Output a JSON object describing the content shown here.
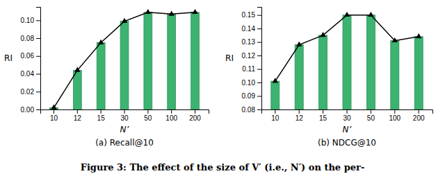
{
  "title": "Figure 3: The effect of the size of V′ (i.e., N′) on the per-",
  "chart_data": [
    {
      "type": "bar",
      "title": "(a)  Recall@10",
      "categories": [
        "10",
        "12",
        "15",
        "30",
        "50",
        "100",
        "200"
      ],
      "series": [
        {
          "type": "bar",
          "color": "#3cb371",
          "values": [
            0.002,
            0.044,
            0.075,
            0.099,
            0.109,
            0.107,
            0.109
          ]
        },
        {
          "type": "line",
          "color": "#000000",
          "marker": "triangle",
          "values": [
            0.002,
            0.044,
            0.075,
            0.099,
            0.109,
            0.107,
            0.109
          ]
        }
      ],
      "x_label": "N’",
      "y_label": "RI",
      "ylim": [
        0.0,
        0.115
      ],
      "yticks": [
        {
          "value": 0.0,
          "label": "0.00"
        },
        0.02,
        0.04,
        0.06,
        0.08,
        {
          "value": 0.1,
          "label": "0.10"
        }
      ],
      "grid": false
    },
    {
      "type": "bar",
      "title": "(b)  NDCG@10",
      "categories": [
        "10",
        "12",
        "15",
        "30",
        "50",
        "100",
        "200"
      ],
      "series": [
        {
          "type": "bar",
          "color": "#3cb371",
          "values": [
            0.101,
            0.128,
            0.135,
            0.15,
            0.15,
            0.131,
            0.134
          ]
        },
        {
          "type": "line",
          "color": "#000000",
          "marker": "triangle",
          "values": [
            0.101,
            0.128,
            0.135,
            0.15,
            0.15,
            0.131,
            0.134
          ]
        }
      ],
      "x_label": "N’",
      "y_label": "RI",
      "ylim": [
        0.08,
        0.156
      ],
      "yticks": [
        0.08,
        0.09,
        {
          "value": 0.1,
          "label": "0.10"
        },
        0.11,
        0.12,
        0.13,
        0.14,
        0.15
      ],
      "grid": false
    }
  ]
}
